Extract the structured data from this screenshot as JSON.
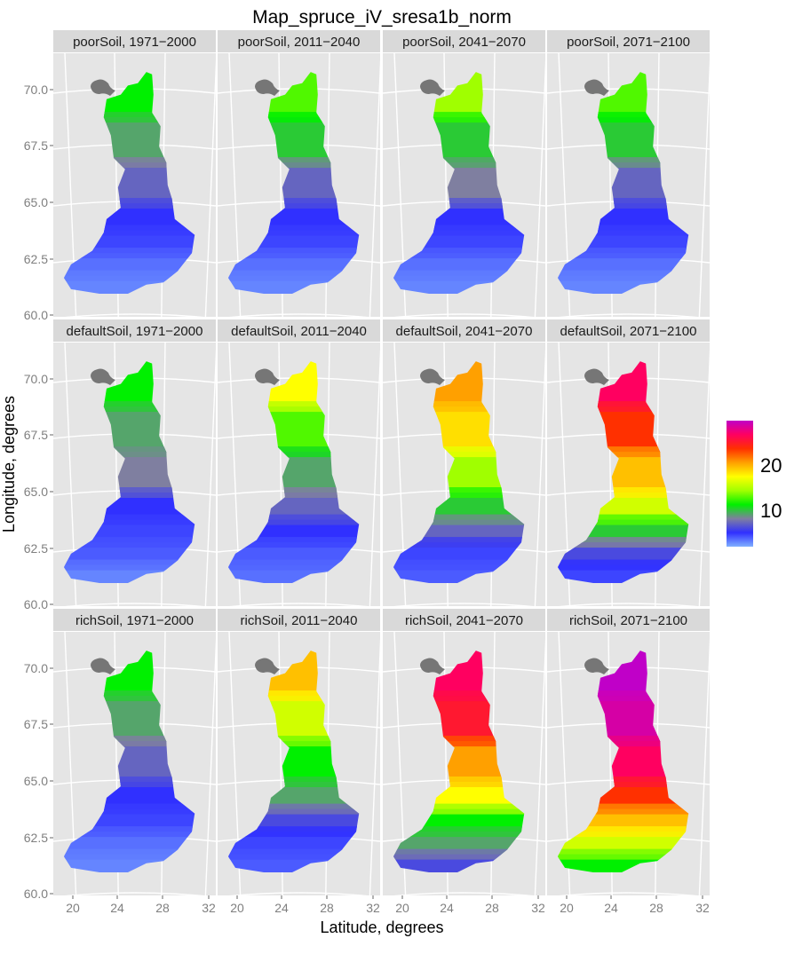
{
  "title": "Map_spruce_iV_sresa1b_norm",
  "xlabel": "Latitude, degrees",
  "ylabel": "Longitude, degrees",
  "x_ticks": [
    "20",
    "24",
    "28",
    "32"
  ],
  "y_ticks": [
    "70.0",
    "67.5",
    "65.0",
    "62.5",
    "60.0"
  ],
  "legend": {
    "ticks": [
      "20",
      "10"
    ],
    "colors": [
      "#c000c8",
      "#ff0060",
      "#ff3000",
      "#ffa000",
      "#ffff00",
      "#a0ff00",
      "#00f000",
      "#7f7fa0",
      "#3030ff",
      "#80b0ff"
    ]
  },
  "panels": [
    {
      "label": "poorSoil, 1971−2000",
      "levels": [
        12,
        10,
        8,
        6,
        5,
        3,
        2
      ]
    },
    {
      "label": "poorSoil, 2011−2040",
      "levels": [
        13,
        11,
        8,
        6,
        5,
        3,
        2
      ]
    },
    {
      "label": "poorSoil, 2041−2070",
      "levels": [
        14,
        11,
        9,
        6,
        5,
        3,
        2
      ]
    },
    {
      "label": "poorSoil, 2071−2100",
      "levels": [
        13,
        11,
        8,
        6,
        5,
        3,
        2
      ]
    },
    {
      "label": "defaultSoil, 1971−2000",
      "levels": [
        12,
        10,
        9,
        6,
        5,
        4,
        2
      ]
    },
    {
      "label": "defaultSoil, 2011−2040",
      "levels": [
        16,
        13,
        10,
        8,
        6,
        4,
        3
      ]
    },
    {
      "label": "defaultSoil, 2041−2070",
      "levels": [
        19,
        17,
        14,
        11,
        8,
        5,
        4
      ]
    },
    {
      "label": "defaultSoil, 2071−2100",
      "levels": [
        23,
        21,
        18,
        15,
        11,
        7,
        5
      ]
    },
    {
      "label": "richSoil, 1971−2000",
      "levels": [
        12,
        10,
        8,
        6,
        5,
        3,
        2
      ]
    },
    {
      "label": "richSoil, 2011−2040",
      "levels": [
        18,
        15,
        12,
        10,
        7,
        5,
        4
      ]
    },
    {
      "label": "richSoil, 2041−2070",
      "levels": [
        23,
        22,
        19,
        16,
        12,
        10,
        7
      ]
    },
    {
      "label": "richSoil, 2071−2100",
      "levels": [
        26,
        25,
        23,
        21,
        18,
        15,
        12
      ]
    }
  ]
}
